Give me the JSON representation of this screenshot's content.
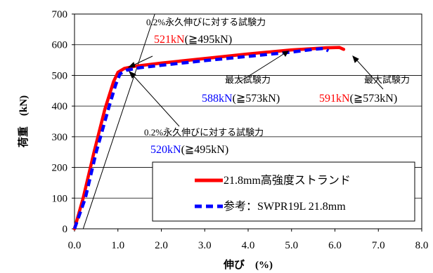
{
  "chart_data": {
    "type": "line",
    "xlabel": "伸び　(%)",
    "ylabel": "荷重　(kN)",
    "xlim": [
      0,
      8
    ],
    "ylim": [
      0,
      700
    ],
    "x_ticks": [
      "0.0",
      "1.0",
      "2.0",
      "3.0",
      "4.0",
      "5.0",
      "6.0",
      "7.0",
      "8.0"
    ],
    "y_ticks": [
      "0",
      "100",
      "200",
      "300",
      "400",
      "500",
      "600",
      "700"
    ],
    "grid": "horizontal",
    "legend_placement": "bottom-right",
    "series": [
      {
        "name": "21.8mm高強度ストランド",
        "color": "#ff0000",
        "style": "solid",
        "points": [
          [
            0.0,
            0
          ],
          [
            0.2,
            100
          ],
          [
            0.45,
            250
          ],
          [
            0.7,
            390
          ],
          [
            0.9,
            480
          ],
          [
            1.0,
            510
          ],
          [
            1.15,
            523
          ],
          [
            1.4,
            530
          ],
          [
            2.0,
            540
          ],
          [
            3.0,
            555
          ],
          [
            4.0,
            570
          ],
          [
            5.0,
            583
          ],
          [
            5.8,
            590
          ],
          [
            6.1,
            591
          ],
          [
            6.2,
            585
          ]
        ]
      },
      {
        "name": "参考：SWPR19L 21.8mm",
        "color": "#0000ff",
        "style": "dashed",
        "points": [
          [
            0.0,
            0
          ],
          [
            0.25,
            100
          ],
          [
            0.5,
            250
          ],
          [
            0.8,
            400
          ],
          [
            0.95,
            470
          ],
          [
            1.05,
            505
          ],
          [
            1.2,
            517
          ],
          [
            1.5,
            525
          ],
          [
            2.0,
            533
          ],
          [
            3.0,
            548
          ],
          [
            4.0,
            562
          ],
          [
            5.0,
            576
          ],
          [
            5.5,
            585
          ],
          [
            5.75,
            588
          ],
          [
            5.85,
            580
          ]
        ]
      },
      {
        "name": "",
        "color": "#000000",
        "style": "thin",
        "points": [
          [
            0.2,
            0
          ],
          [
            1.85,
            700
          ]
        ]
      }
    ],
    "annotations": [
      {
        "line1": "0.2%永久伸びに対する試験力",
        "value": "521kN",
        "spec": "(≧495kN)",
        "value_color": "#ff0000"
      },
      {
        "line1": "最大試験力",
        "value": "588kN",
        "spec": "(≧573kN)",
        "value_color": "#0000ff"
      },
      {
        "line1": "最大試験力",
        "value": "591kN",
        "spec": "(≧573kN)",
        "value_color": "#ff0000"
      },
      {
        "line1": "0.2%永久伸びに対する試験力",
        "value": "520kN",
        "spec": "(≧495kN)",
        "value_color": "#0000ff"
      }
    ]
  }
}
